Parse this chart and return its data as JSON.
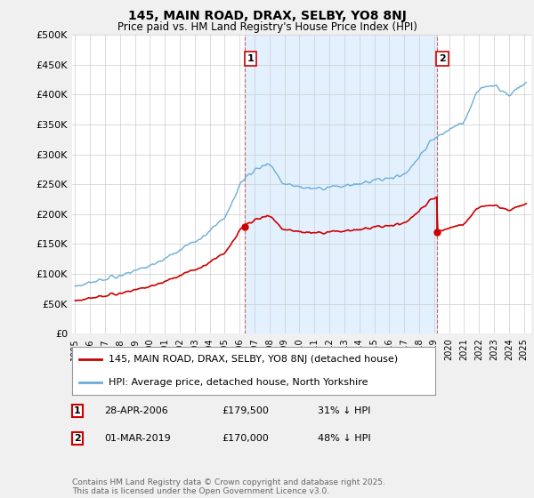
{
  "title": "145, MAIN ROAD, DRAX, SELBY, YO8 8NJ",
  "subtitle": "Price paid vs. HM Land Registry's House Price Index (HPI)",
  "ylabel_ticks": [
    "£0",
    "£50K",
    "£100K",
    "£150K",
    "£200K",
    "£250K",
    "£300K",
    "£350K",
    "£400K",
    "£450K",
    "£500K"
  ],
  "ytick_values": [
    0,
    50000,
    100000,
    150000,
    200000,
    250000,
    300000,
    350000,
    400000,
    450000,
    500000
  ],
  "ylim": [
    0,
    500000
  ],
  "xlim_start": 1994.8,
  "xlim_end": 2025.5,
  "hpi_color": "#6baed6",
  "price_color": "#cc0000",
  "shade_color": "#ddeeff",
  "sale1_year": 2006.33,
  "sale2_year": 2019.17,
  "sale1_price": 179500,
  "sale2_price": 170000,
  "legend_line1": "145, MAIN ROAD, DRAX, SELBY, YO8 8NJ (detached house)",
  "legend_line2": "HPI: Average price, detached house, North Yorkshire",
  "table_row1": [
    "1",
    "28-APR-2006",
    "£179,500",
    "31% ↓ HPI"
  ],
  "table_row2": [
    "2",
    "01-MAR-2019",
    "£170,000",
    "48% ↓ HPI"
  ],
  "footer": "Contains HM Land Registry data © Crown copyright and database right 2025.\nThis data is licensed under the Open Government Licence v3.0.",
  "background_color": "#f0f0f0",
  "plot_background": "#ffffff",
  "grid_color": "#cccccc"
}
